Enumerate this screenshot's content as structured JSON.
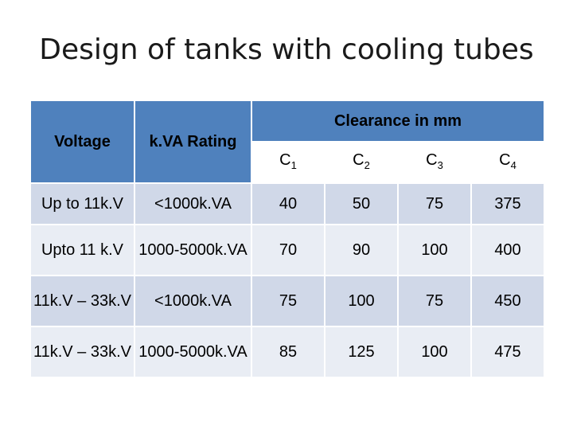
{
  "title": "Design of tanks with cooling tubes",
  "headers": {
    "voltage": "Voltage",
    "kva": "k.VA Rating",
    "clearance": "Clearance in mm"
  },
  "subheaders": [
    {
      "main": "C",
      "sub": "1"
    },
    {
      "main": "C",
      "sub": "2"
    },
    {
      "main": "C",
      "sub": "3"
    },
    {
      "main": "C",
      "sub": "4"
    }
  ],
  "rows": [
    {
      "voltage": "Up to 11k.V",
      "kva": "<1000k.VA",
      "c1": "40",
      "c2": "50",
      "c3": "75",
      "c4": "375"
    },
    {
      "voltage": "Upto 11 k.V",
      "kva": "1000-5000k.VA",
      "c1": "70",
      "c2": "90",
      "c3": "100",
      "c4": "400"
    },
    {
      "voltage": "11k.V – 33k.V",
      "kva": "<1000k.VA",
      "c1": "75",
      "c2": "100",
      "c3": "75",
      "c4": "450"
    },
    {
      "voltage": "11k.V – 33k.V",
      "kva": "1000-5000k.VA",
      "c1": "85",
      "c2": "125",
      "c3": "100",
      "c4": "475"
    }
  ]
}
